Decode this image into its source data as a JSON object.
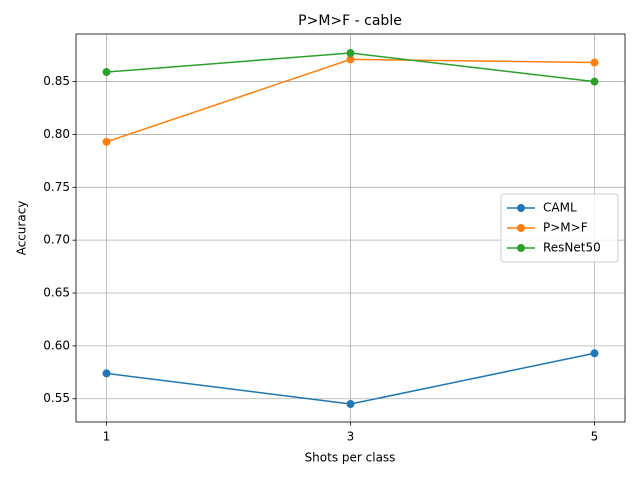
{
  "chart_data": {
    "type": "line",
    "title": "P>M>F - cable",
    "xlabel": "Shots per class",
    "ylabel": "Accuracy",
    "x": [
      1,
      3,
      5
    ],
    "xlim": [
      0.75,
      5.25
    ],
    "xticks": [
      1,
      3,
      5
    ],
    "ylim": [
      0.528,
      0.895
    ],
    "yticks": [
      0.55,
      {
        "value": 0.6,
        "label": "0.60"
      },
      0.65,
      {
        "value": 0.7,
        "label": "0.70"
      },
      0.75,
      {
        "value": 0.8,
        "label": "0.80"
      },
      0.85
    ],
    "grid": true,
    "legend": "center right",
    "series": [
      {
        "name": "CAML",
        "color": "#1f77b4",
        "values": [
          0.574,
          0.545,
          0.593
        ]
      },
      {
        "name": "P>M>F",
        "color": "#ff7f0e",
        "values": [
          0.793,
          0.871,
          0.868
        ]
      },
      {
        "name": "ResNet50",
        "color": "#2ca02c",
        "values": [
          0.859,
          0.877,
          0.85
        ]
      }
    ]
  }
}
